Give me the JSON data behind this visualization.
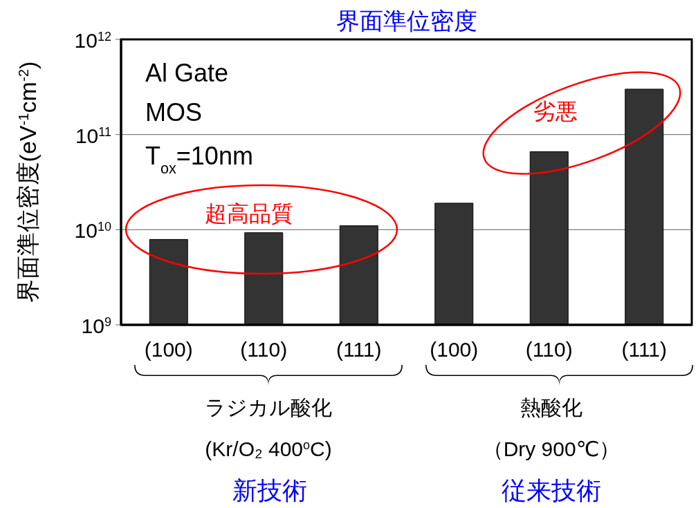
{
  "chart_data": {
    "type": "bar",
    "title": "界面準位密度",
    "ylabel": "界面準位密度(eV$^{-1}$cm$^{-2}$)",
    "categories": [
      "(100)",
      "(110)",
      "(111)",
      "(100)",
      "(110)",
      "(111)"
    ],
    "values": [
      7900000000.0,
      9300000000.0,
      11000000000.0,
      19000000000.0,
      66000000000.0,
      300000000000.0
    ],
    "color": "#333333",
    "log": "y",
    "ylim": [
      1000000000.0,
      1000000000000.0
    ],
    "yticks": [
      {
        "value": 1000000000.0,
        "label": "10$^{9}$"
      },
      {
        "value": 10000000000.0,
        "label": "10$^{10}$"
      },
      {
        "value": 100000000000.0,
        "label": "10$^{11}$"
      },
      {
        "value": 1000000000000.0,
        "label": "10$^{12}$"
      }
    ],
    "grid": "y",
    "annotations": [
      "Al Gate",
      "MOS",
      "T$_{ox}$=10nm",
      "超高品質",
      "劣悪",
      "ラジカル酸化",
      "(Kr/O₂ 400$^{o}$C)",
      "新技術",
      "熱酸化",
      "（Dry 900℃）",
      "従来技術"
    ]
  }
}
